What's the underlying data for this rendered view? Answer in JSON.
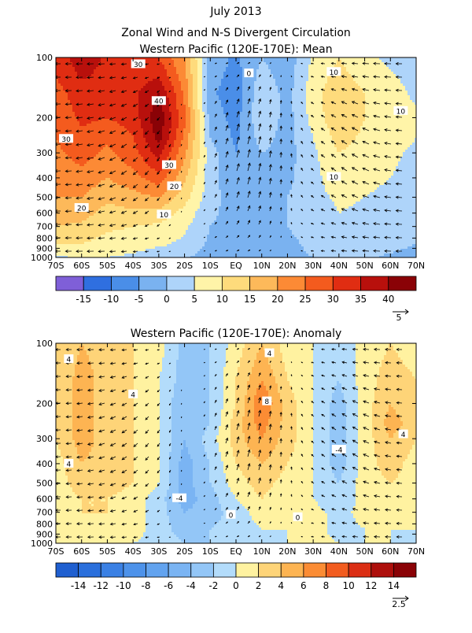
{
  "header": {
    "line1": "July 2013",
    "line2": "Zonal Wind and N-S Divergent Circulation"
  },
  "chart_data": [
    {
      "type": "heatmap",
      "title": "Western Pacific (120E-170E): Mean",
      "x_ticks": [
        "70S",
        "60S",
        "50S",
        "40S",
        "30S",
        "20S",
        "10S",
        "EQ",
        "10N",
        "20N",
        "30N",
        "40N",
        "50N",
        "60N",
        "70N"
      ],
      "x_range": [
        -70,
        70
      ],
      "y_ticks": [
        100,
        200,
        300,
        400,
        500,
        600,
        700,
        800,
        900,
        1000
      ],
      "y_range_hpa": [
        1000,
        100
      ],
      "y_scale": "log-pressure",
      "colorbar_levels": [
        "-15",
        "-10",
        "-5",
        "0",
        "5",
        "10",
        "15",
        "20",
        "25",
        "30",
        "35",
        "40"
      ],
      "colorbar_colors": [
        "#7f5fd8",
        "#2f6fe0",
        "#4a8ee8",
        "#7ab2f0",
        "#aed4fa",
        "#fff4a8",
        "#fedb7c",
        "#fdb95a",
        "#fc8a35",
        "#f45b1e",
        "#e02d12",
        "#b8100c",
        "#8a0206"
      ],
      "contour_labels": [
        {
          "text": "30",
          "lat": -38,
          "p": 108
        },
        {
          "text": "40",
          "lat": -30,
          "p": 165
        },
        {
          "text": "30",
          "lat": -66,
          "p": 255
        },
        {
          "text": "30",
          "lat": -26,
          "p": 345
        },
        {
          "text": "20",
          "lat": -24,
          "p": 440
        },
        {
          "text": "20",
          "lat": -60,
          "p": 565
        },
        {
          "text": "10",
          "lat": -28,
          "p": 610
        },
        {
          "text": "0",
          "lat": 5,
          "p": 120
        },
        {
          "text": "10",
          "lat": 38,
          "p": 118
        },
        {
          "text": "10",
          "lat": 64,
          "p": 185
        },
        {
          "text": "10",
          "lat": 38,
          "p": 395
        }
      ],
      "reference_vector": "5",
      "field": {
        "lats": [
          -70,
          -60,
          -50,
          -40,
          -30,
          -20,
          -10,
          0,
          10,
          20,
          30,
          40,
          50,
          60,
          70
        ],
        "levels_hpa": [
          100,
          150,
          200,
          250,
          300,
          400,
          500,
          600,
          700,
          850,
          1000
        ],
        "values": [
          [
            32,
            38,
            34,
            30,
            30,
            20,
            -2,
            -6,
            0,
            -3,
            6,
            10,
            6,
            4,
            3
          ],
          [
            28,
            33,
            33,
            34,
            40,
            24,
            -4,
            -8,
            4,
            -2,
            8,
            14,
            10,
            7,
            4
          ],
          [
            26,
            31,
            30,
            32,
            44,
            26,
            -2,
            -7,
            4,
            -2,
            7,
            14,
            10,
            8,
            6
          ],
          [
            25,
            29,
            26,
            30,
            42,
            24,
            0,
            -6,
            2,
            -2,
            5,
            12,
            9,
            8,
            5
          ],
          [
            24,
            27,
            24,
            28,
            37,
            21,
            2,
            -5,
            0,
            -2,
            4,
            10,
            8,
            6,
            4
          ],
          [
            22,
            23,
            20,
            23,
            28,
            16,
            2,
            -4,
            -2,
            -1,
            3,
            9,
            6,
            5,
            3
          ],
          [
            20,
            20,
            16,
            18,
            20,
            12,
            2,
            -3,
            -2,
            0,
            3,
            6,
            5,
            4,
            2
          ],
          [
            18,
            17,
            13,
            14,
            13,
            8,
            1,
            -2,
            -2,
            0,
            2,
            5,
            4,
            3,
            2
          ],
          [
            15,
            14,
            11,
            10,
            9,
            6,
            0,
            -2,
            -2,
            0,
            2,
            4,
            3,
            3,
            1
          ],
          [
            10,
            10,
            8,
            7,
            6,
            4,
            -1,
            -3,
            -3,
            -1,
            1,
            3,
            2,
            2,
            0
          ],
          [
            4,
            6,
            5,
            4,
            2,
            1,
            -3,
            -4,
            -3,
            -1,
            0,
            1,
            1,
            -1,
            -2
          ]
        ]
      }
    },
    {
      "type": "heatmap",
      "title": "Western Pacific (120E-170E): Anomaly",
      "x_ticks": [
        "70S",
        "60S",
        "50S",
        "40S",
        "30S",
        "20S",
        "10S",
        "EQ",
        "10N",
        "20N",
        "30N",
        "40N",
        "50N",
        "60N",
        "70N"
      ],
      "x_range": [
        -70,
        70
      ],
      "y_ticks": [
        100,
        200,
        300,
        400,
        500,
        600,
        700,
        800,
        900,
        1000
      ],
      "y_range_hpa": [
        1000,
        100
      ],
      "y_scale": "log-pressure",
      "colorbar_levels": [
        "-14",
        "-12",
        "-10",
        "-8",
        "-6",
        "-4",
        "-2",
        "0",
        "2",
        "4",
        "6",
        "8",
        "10",
        "12",
        "14"
      ],
      "colorbar_colors": [
        "#1f5fd0",
        "#2a6fdc",
        "#3a80e4",
        "#4d92ea",
        "#62a3ef",
        "#7ab4f3",
        "#93c6f7",
        "#b3dcfb",
        "#fff2a0",
        "#fed478",
        "#fdb452",
        "#fb8c34",
        "#f25c1f",
        "#db2e14",
        "#ae0f0c",
        "#8a0206"
      ],
      "contour_labels": [
        {
          "text": "4",
          "lat": -65,
          "p": 120
        },
        {
          "text": "4",
          "lat": -40,
          "p": 180
        },
        {
          "text": "4",
          "lat": -65,
          "p": 400
        },
        {
          "text": "4",
          "lat": 13,
          "p": 112
        },
        {
          "text": "8",
          "lat": 12,
          "p": 195
        },
        {
          "text": "-4",
          "lat": -22,
          "p": 595
        },
        {
          "text": "-4",
          "lat": 40,
          "p": 340
        },
        {
          "text": "4",
          "lat": 65,
          "p": 285
        },
        {
          "text": "0",
          "lat": -2,
          "p": 720
        },
        {
          "text": "0",
          "lat": 24,
          "p": 740
        }
      ],
      "reference_vector": "2.5",
      "field": {
        "lats": [
          -70,
          -60,
          -50,
          -40,
          -30,
          -20,
          -10,
          0,
          10,
          20,
          30,
          40,
          50,
          60,
          70
        ],
        "levels_hpa": [
          100,
          150,
          200,
          250,
          300,
          400,
          500,
          600,
          700,
          850,
          1000
        ],
        "values": [
          [
            2,
            4,
            3,
            2,
            1,
            -3,
            -2,
            1,
            4,
            1,
            0,
            -2,
            1,
            2,
            1
          ],
          [
            2,
            5,
            3,
            2,
            0,
            -3,
            -2,
            2,
            6,
            2,
            0,
            -2,
            1,
            3,
            2
          ],
          [
            2,
            5,
            3,
            2,
            0,
            -4,
            -2,
            2,
            8,
            3,
            0,
            -3,
            1,
            4,
            2
          ],
          [
            2,
            5,
            3,
            2,
            0,
            -4,
            -2,
            3,
            7,
            3,
            0,
            -3,
            1,
            5,
            3
          ],
          [
            2,
            5,
            3,
            2,
            0,
            -4,
            -1,
            3,
            6,
            3,
            0,
            -3,
            1,
            4,
            2
          ],
          [
            1,
            4,
            3,
            2,
            0,
            -5,
            -2,
            2,
            4,
            2,
            0,
            -3,
            1,
            3,
            1
          ],
          [
            1,
            3,
            3,
            2,
            0,
            -5,
            -2,
            1,
            3,
            1,
            0,
            -2,
            1,
            2,
            1
          ],
          [
            1,
            2,
            2,
            1,
            -1,
            -5,
            -3,
            0,
            2,
            0,
            0,
            -2,
            1,
            1,
            0
          ],
          [
            1,
            2,
            2,
            1,
            -1,
            -4,
            -3,
            -1,
            1,
            0,
            1,
            -1,
            1,
            1,
            0
          ],
          [
            0,
            1,
            1,
            1,
            -1,
            -3,
            -2,
            -1,
            0,
            0,
            1,
            -1,
            0,
            0,
            0
          ],
          [
            0,
            1,
            1,
            0,
            -1,
            -2,
            -2,
            -1,
            -1,
            0,
            1,
            0,
            0,
            0,
            -1
          ]
        ]
      }
    }
  ]
}
